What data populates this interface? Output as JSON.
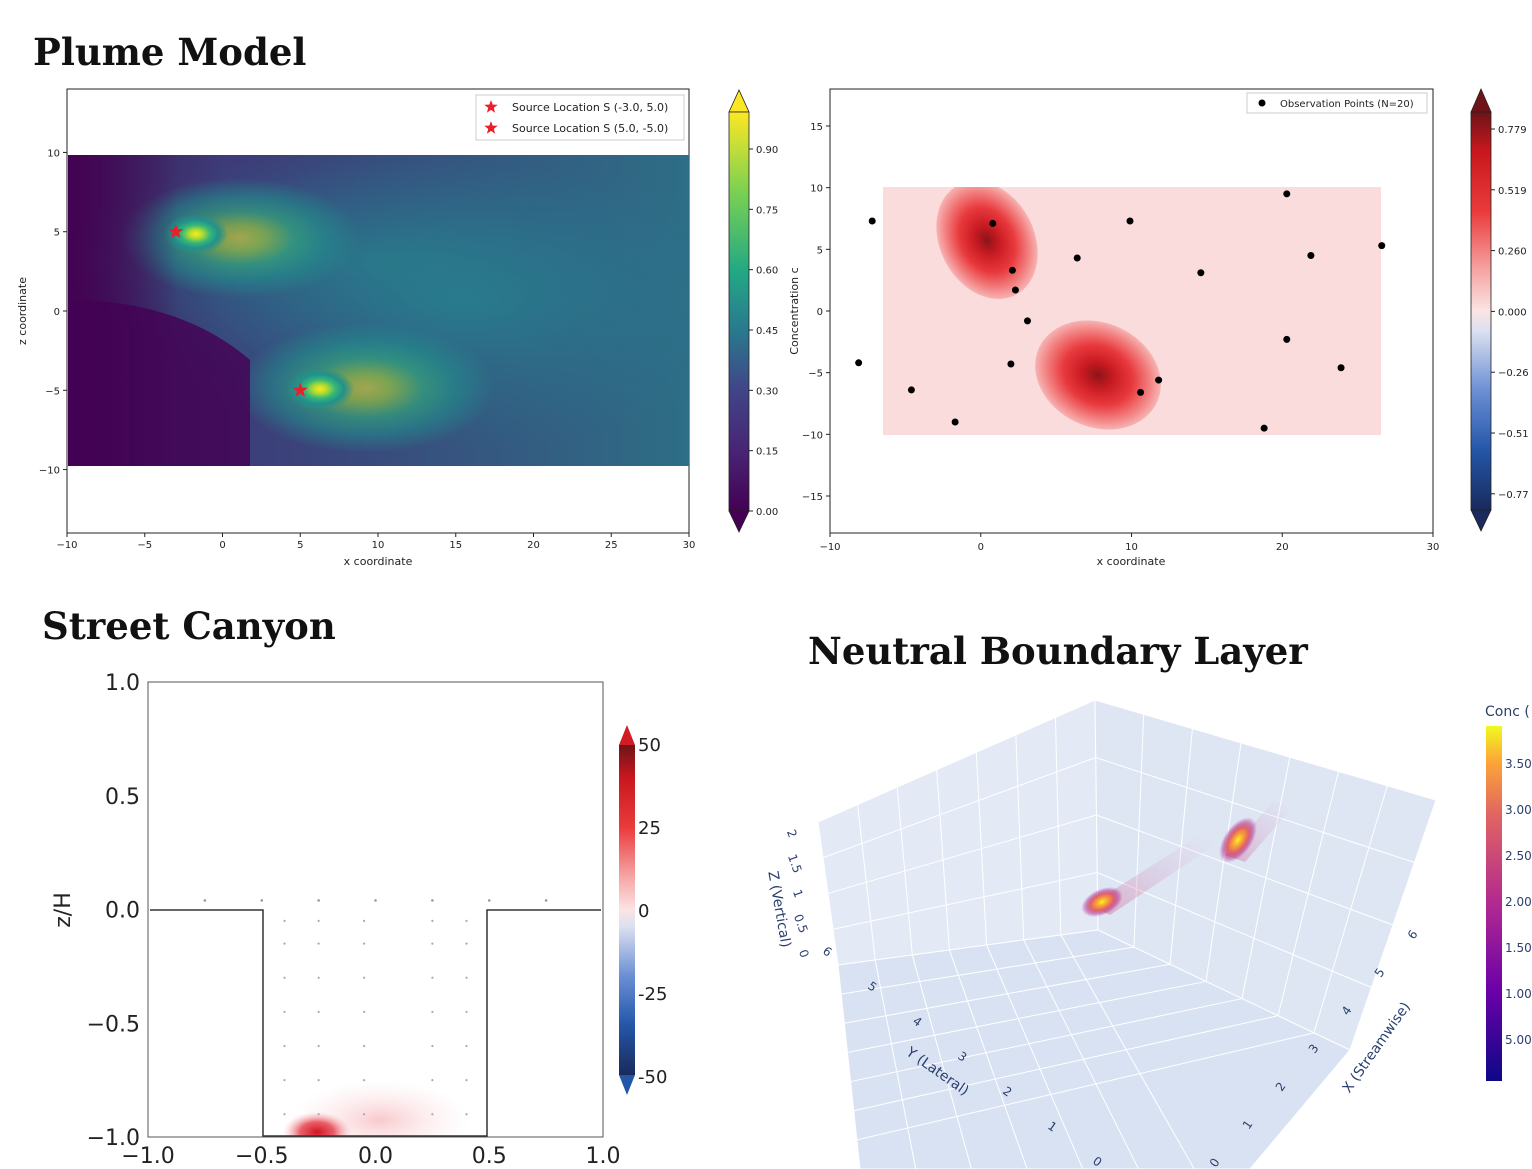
{
  "headings": {
    "plume_model": "Plume Model",
    "street_canyon": "Street Canyon",
    "neutral_boundary_layer": "Neutral Boundary Layer"
  },
  "chart_data": [
    {
      "type": "heatmap",
      "xlabel": "x coordinate",
      "ylabel": "z coordinate",
      "xlim": [
        -10,
        30
      ],
      "ylim": [
        -14,
        14
      ],
      "domain": {
        "x": [
          -10,
          30
        ],
        "z": [
          -10,
          10
        ]
      },
      "xticks": [
        -10,
        -5,
        0,
        5,
        10,
        15,
        20,
        25,
        30
      ],
      "yticks": [
        -10,
        -5,
        0,
        5,
        10
      ],
      "sources": [
        {
          "label": "Source Location S (-3.0, 5.0)",
          "x": -3.0,
          "z": 5.0
        },
        {
          "label": "Source Location S (5.0, -5.0)",
          "x": 5.0,
          "z": -5.0
        }
      ],
      "legend": "top-right",
      "colorscale": "viridis",
      "colorbar_ticks": [
        "0.00",
        "0.15",
        "0.30",
        "0.45",
        "0.60",
        "0.75",
        "0.90"
      ],
      "marker_color": "#e8202a"
    },
    {
      "type": "heatmap",
      "xlabel": "x coordinate",
      "ylabel": "Concentration c",
      "xlim": [
        -10,
        30
      ],
      "ylim": [
        -18,
        18
      ],
      "domain": {
        "x": [
          -10,
          30
        ],
        "y": [
          -10,
          10
        ]
      },
      "xticks": [
        -10,
        0,
        10,
        20,
        30
      ],
      "yticks": [
        -15,
        -10,
        -5,
        0,
        5,
        10,
        15
      ],
      "blobs": [
        {
          "x": -1,
          "y": 5,
          "peak": 0.779
        },
        {
          "x": 6.5,
          "y": -4.2,
          "peak": 0.7
        }
      ],
      "legend_label": "Observation Points (N=20)",
      "legend": "top-right",
      "observation_points": [
        {
          "x": -7.2,
          "y": 7.3
        },
        {
          "x": 0.8,
          "y": 7.1
        },
        {
          "x": 9.9,
          "y": 7.3
        },
        {
          "x": 20.3,
          "y": 9.5
        },
        {
          "x": 26.6,
          "y": 5.3
        },
        {
          "x": 21.9,
          "y": 4.5
        },
        {
          "x": 6.4,
          "y": 4.3
        },
        {
          "x": 14.6,
          "y": 3.1
        },
        {
          "x": 2.1,
          "y": 3.3
        },
        {
          "x": 2.3,
          "y": 1.7
        },
        {
          "x": 3.1,
          "y": -0.8
        },
        {
          "x": 20.3,
          "y": -2.3
        },
        {
          "x": -8.1,
          "y": -4.2
        },
        {
          "x": 2.0,
          "y": -4.3
        },
        {
          "x": 23.9,
          "y": -4.6
        },
        {
          "x": 11.8,
          "y": -5.6
        },
        {
          "x": -4.6,
          "y": -6.4
        },
        {
          "x": 10.6,
          "y": -6.6
        },
        {
          "x": -1.7,
          "y": -9.0
        },
        {
          "x": 18.8,
          "y": -9.5
        }
      ],
      "colorscale": "RdBu_r",
      "colorbar_ticks": [
        "0.779",
        "0.519",
        "0.260",
        "0.000",
        "−0.26",
        "−0.51",
        "−0.77"
      ]
    },
    {
      "type": "heatmap",
      "xlabel": "",
      "ylabel": "z/H",
      "xlim": [
        -1.0,
        1.0
      ],
      "ylim": [
        -1.0,
        1.0
      ],
      "xticks": [
        "−1.0",
        "−0.5",
        "0.0",
        "0.5",
        "1.0"
      ],
      "yticks": [
        "−1.0",
        "−0.5",
        "0.0",
        "0.5",
        "1.0"
      ],
      "canyon": {
        "left": -0.5,
        "right": 0.5,
        "roof": 0.0,
        "floor": -1.0
      },
      "hotspot": {
        "x": -0.27,
        "y": -0.98
      },
      "colorscale": "RdBu_r",
      "colorbar_ticks": [
        "50",
        "25",
        "0",
        "-25",
        "-50"
      ]
    },
    {
      "type": "scatter",
      "xlabel": "X (Streamwise)",
      "ylabel": "Y (Lateral)",
      "zlabel": "Z (Vertical)",
      "x_ticks": [
        "0",
        "1",
        "2",
        "3",
        "4",
        "5",
        "6"
      ],
      "y_ticks": [
        "0",
        "1",
        "2",
        "3",
        "4",
        "5",
        "6"
      ],
      "z_ticks": [
        "0",
        "0.5",
        "1",
        "1.5",
        "2"
      ],
      "colorbar_title": "Conc (",
      "colorbar_ticks": [
        "3.50",
        "3.00",
        "2.50",
        "2.00",
        "1.50",
        "1.00",
        "5.00"
      ],
      "colorscale": "plasma"
    }
  ]
}
